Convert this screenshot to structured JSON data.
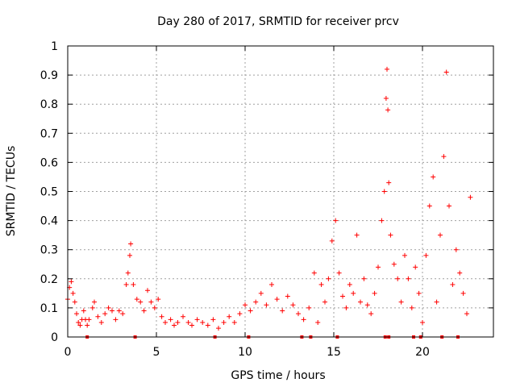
{
  "chart_data": {
    "type": "scatter",
    "title": "Day 280 of 2017, SRMTID for receiver prcv",
    "xlabel": "GPS time / hours",
    "ylabel": "SRMTID / TECUs",
    "xlim": [
      0,
      24
    ],
    "ylim": [
      0,
      1
    ],
    "xticks": [
      0,
      5,
      10,
      15,
      20
    ],
    "xtick_labels": [
      "0",
      "5",
      "10",
      "15",
      "20"
    ],
    "yticks": [
      0,
      0.1,
      0.2,
      0.3,
      0.4,
      0.5,
      0.6,
      0.7,
      0.8,
      0.9,
      1
    ],
    "ytick_labels": [
      "0",
      "0.1",
      "0.2",
      "0.3",
      "0.4",
      "0.5",
      "0.6",
      "0.7",
      "0.8",
      "0.9",
      "1"
    ],
    "grid": true,
    "marker": "+",
    "color": "#ff0000",
    "series": [
      {
        "name": "SRMTID",
        "points": [
          [
            0.0,
            0.13
          ],
          [
            0.1,
            0.17
          ],
          [
            0.2,
            0.19
          ],
          [
            0.3,
            0.15
          ],
          [
            0.4,
            0.12
          ],
          [
            0.5,
            0.08
          ],
          [
            0.6,
            0.05
          ],
          [
            0.7,
            0.04
          ],
          [
            0.8,
            0.06
          ],
          [
            0.9,
            0.09
          ],
          [
            1.0,
            0.06
          ],
          [
            1.1,
            0.04
          ],
          [
            1.2,
            0.06
          ],
          [
            1.4,
            0.1
          ],
          [
            1.5,
            0.12
          ],
          [
            1.7,
            0.07
          ],
          [
            1.9,
            0.05
          ],
          [
            2.1,
            0.08
          ],
          [
            2.3,
            0.1
          ],
          [
            2.5,
            0.09
          ],
          [
            2.7,
            0.06
          ],
          [
            2.9,
            0.09
          ],
          [
            3.1,
            0.08
          ],
          [
            3.3,
            0.18
          ],
          [
            3.4,
            0.22
          ],
          [
            3.5,
            0.28
          ],
          [
            3.55,
            0.32
          ],
          [
            3.7,
            0.18
          ],
          [
            3.9,
            0.13
          ],
          [
            4.1,
            0.12
          ],
          [
            4.3,
            0.09
          ],
          [
            4.5,
            0.16
          ],
          [
            4.7,
            0.12
          ],
          [
            4.9,
            0.1
          ],
          [
            5.1,
            0.13
          ],
          [
            5.3,
            0.07
          ],
          [
            5.5,
            0.05
          ],
          [
            5.8,
            0.06
          ],
          [
            6.0,
            0.04
          ],
          [
            6.2,
            0.05
          ],
          [
            6.5,
            0.07
          ],
          [
            6.8,
            0.05
          ],
          [
            7.0,
            0.04
          ],
          [
            7.3,
            0.06
          ],
          [
            7.6,
            0.05
          ],
          [
            7.9,
            0.04
          ],
          [
            8.2,
            0.06
          ],
          [
            8.5,
            0.03
          ],
          [
            8.8,
            0.05
          ],
          [
            9.1,
            0.07
          ],
          [
            9.4,
            0.05
          ],
          [
            9.7,
            0.08
          ],
          [
            10.0,
            0.11
          ],
          [
            10.3,
            0.09
          ],
          [
            10.6,
            0.12
          ],
          [
            10.9,
            0.15
          ],
          [
            11.2,
            0.11
          ],
          [
            11.5,
            0.18
          ],
          [
            11.8,
            0.13
          ],
          [
            12.1,
            0.09
          ],
          [
            12.4,
            0.14
          ],
          [
            12.7,
            0.11
          ],
          [
            13.0,
            0.08
          ],
          [
            13.3,
            0.06
          ],
          [
            13.6,
            0.1
          ],
          [
            13.9,
            0.22
          ],
          [
            14.1,
            0.05
          ],
          [
            14.3,
            0.18
          ],
          [
            14.5,
            0.12
          ],
          [
            14.7,
            0.2
          ],
          [
            14.9,
            0.33
          ],
          [
            15.1,
            0.4
          ],
          [
            15.3,
            0.22
          ],
          [
            15.5,
            0.14
          ],
          [
            15.7,
            0.1
          ],
          [
            15.9,
            0.18
          ],
          [
            16.1,
            0.15
          ],
          [
            16.3,
            0.35
          ],
          [
            16.5,
            0.12
          ],
          [
            16.7,
            0.2
          ],
          [
            16.9,
            0.11
          ],
          [
            17.1,
            0.08
          ],
          [
            17.3,
            0.15
          ],
          [
            17.5,
            0.24
          ],
          [
            17.7,
            0.4
          ],
          [
            17.85,
            0.5
          ],
          [
            17.95,
            0.82
          ],
          [
            18.0,
            0.92
          ],
          [
            18.05,
            0.78
          ],
          [
            18.1,
            0.53
          ],
          [
            18.2,
            0.35
          ],
          [
            18.4,
            0.25
          ],
          [
            18.6,
            0.2
          ],
          [
            18.8,
            0.12
          ],
          [
            19.0,
            0.28
          ],
          [
            19.2,
            0.2
          ],
          [
            19.4,
            0.1
          ],
          [
            19.6,
            0.24
          ],
          [
            19.8,
            0.15
          ],
          [
            20.0,
            0.05
          ],
          [
            20.2,
            0.28
          ],
          [
            20.4,
            0.45
          ],
          [
            20.6,
            0.55
          ],
          [
            20.8,
            0.12
          ],
          [
            21.0,
            0.35
          ],
          [
            21.2,
            0.62
          ],
          [
            21.35,
            0.91
          ],
          [
            21.5,
            0.45
          ],
          [
            21.7,
            0.18
          ],
          [
            21.9,
            0.3
          ],
          [
            22.1,
            0.22
          ],
          [
            22.3,
            0.15
          ],
          [
            22.5,
            0.08
          ],
          [
            22.7,
            0.48
          ]
        ]
      }
    ],
    "zero_markers_x": [
      1.1,
      3.8,
      8.3,
      10.2,
      13.2,
      13.7,
      15.2,
      17.9,
      18.1,
      19.5,
      19.9,
      21.1,
      22.0
    ]
  }
}
